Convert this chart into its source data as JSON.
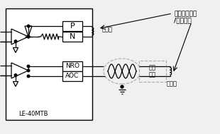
{
  "bg_color": "#f0f0f0",
  "line_color": "#000000",
  "dashed_color": "#aaaaaa",
  "title_line1": "파우더클러치",
  "title_line2": "/브레이크",
  "label_jeeo": "제어용",
  "label_bojo": "보조용",
  "label_le": "LE-40MTB",
  "label_P": "P",
  "label_N": "N",
  "label_NRO": "NRO",
  "label_AOC": "AOC",
  "label_pawa_line1": "파워",
  "label_pawa_line2": "앤프"
}
